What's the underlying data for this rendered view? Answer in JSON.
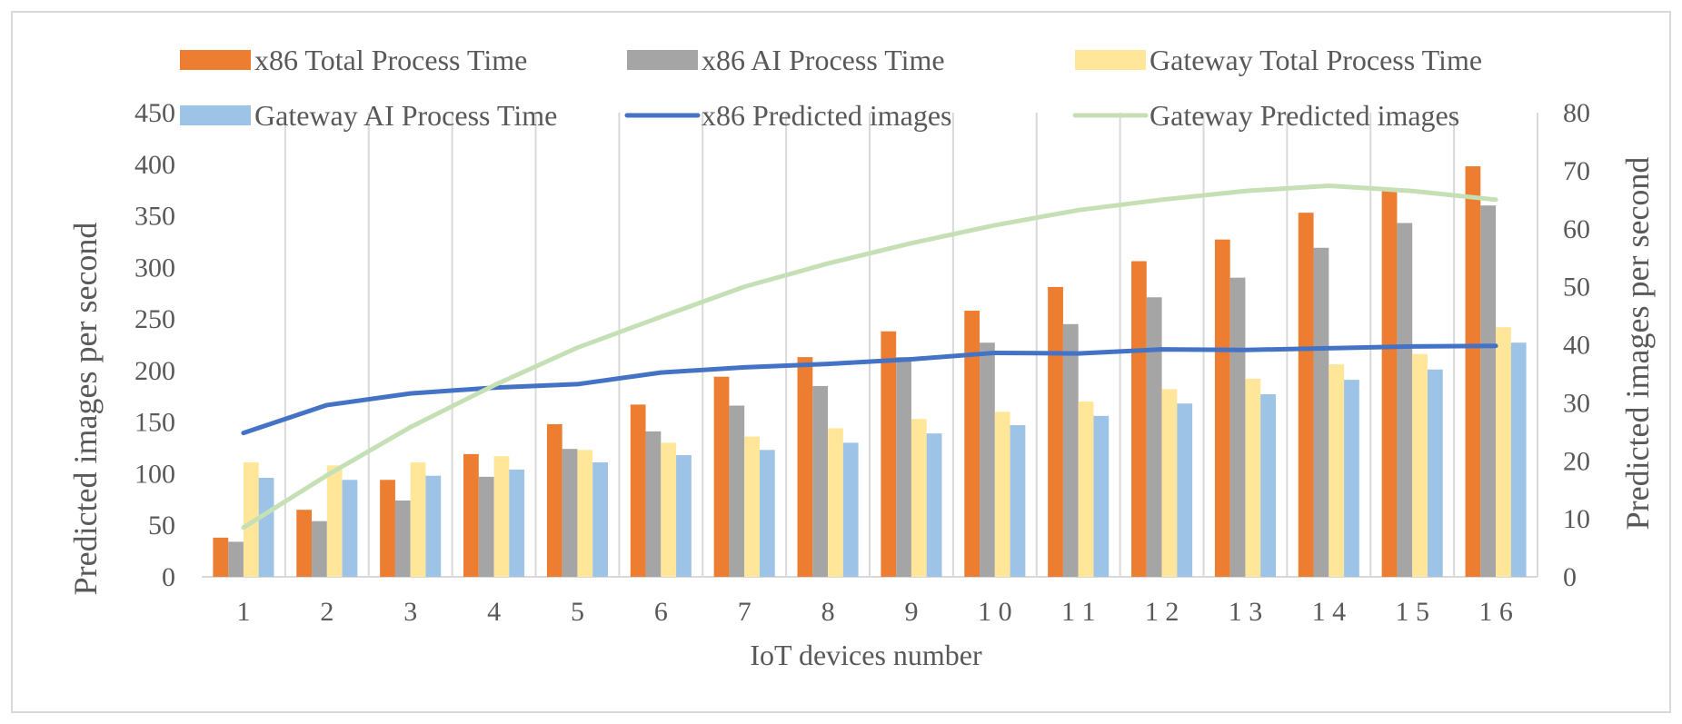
{
  "chart_data": {
    "type": "bar",
    "title": "",
    "xlabel": "IoT devices number",
    "ylabel": "Predicted images per second",
    "y2label": "Predicted images per second",
    "ylim": [
      0,
      450
    ],
    "y2lim": [
      0,
      80
    ],
    "yticks": [
      0,
      50,
      100,
      150,
      200,
      250,
      300,
      350,
      400,
      450
    ],
    "y2ticks": [
      0,
      10,
      20,
      30,
      40,
      50,
      60,
      70,
      80
    ],
    "grid": "vertical",
    "legend_position": "top",
    "categories": [
      "1",
      "2",
      "3",
      "4",
      "5",
      "6",
      "7",
      "8",
      "9",
      "1 0",
      "1 1",
      "1 2",
      "1 3",
      "1 4",
      "1 5",
      "1 6"
    ],
    "series": [
      {
        "name": "x86 Total Process Time",
        "kind": "bar",
        "axis": "left",
        "color": "#ED7D31",
        "values": [
          38,
          65,
          94,
          119,
          148,
          167,
          194,
          213,
          238,
          258,
          281,
          306,
          327,
          353,
          377,
          398
        ]
      },
      {
        "name": "x86 AI Process Time",
        "kind": "bar",
        "axis": "left",
        "color": "#A5A5A5",
        "values": [
          34,
          54,
          74,
          97,
          124,
          141,
          166,
          185,
          213,
          227,
          245,
          271,
          290,
          319,
          343,
          360
        ]
      },
      {
        "name": "Gateway Total Process Time",
        "kind": "bar",
        "axis": "left",
        "color": "#FFE699",
        "values": [
          111,
          108,
          111,
          117,
          123,
          130,
          136,
          144,
          153,
          160,
          170,
          182,
          192,
          206,
          216,
          242
        ]
      },
      {
        "name": "Gateway AI Process Time",
        "kind": "bar",
        "axis": "left",
        "color": "#9DC3E6",
        "values": [
          96,
          94,
          98,
          104,
          111,
          118,
          123,
          130,
          139,
          147,
          156,
          168,
          177,
          191,
          201,
          227
        ]
      },
      {
        "name": "x86 Predicted images",
        "kind": "line",
        "axis": "right",
        "color": "#4472C4",
        "values": [
          24.8,
          29.6,
          31.6,
          32.6,
          33.2,
          35.2,
          36.1,
          36.7,
          37.5,
          38.6,
          38.5,
          39.2,
          39.1,
          39.4,
          39.7,
          39.8
        ]
      },
      {
        "name": "Gateway Predicted images",
        "kind": "line",
        "axis": "right",
        "color": "#C5E0B4",
        "values": [
          8.5,
          17.5,
          25.8,
          33.0,
          39.5,
          44.8,
          50.0,
          54.0,
          57.5,
          60.6,
          63.2,
          65.0,
          66.5,
          67.4,
          66.5,
          65.0
        ]
      }
    ]
  }
}
